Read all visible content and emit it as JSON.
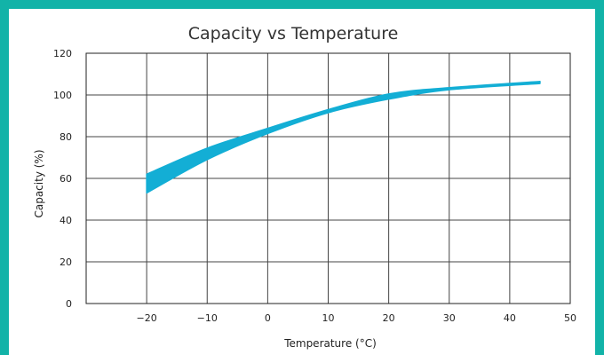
{
  "chart_data": {
    "type": "area",
    "title": "Capacity vs Temperature",
    "xlabel": "Temperature (°C)",
    "ylabel": "Capacity (%)",
    "xlim": [
      -30,
      50
    ],
    "ylim": [
      0,
      120
    ],
    "x_ticks": [
      "−20",
      "−10",
      "0",
      "10",
      "20",
      "30",
      "40",
      "50"
    ],
    "y_ticks": [
      "0",
      "20",
      "40",
      "60",
      "80",
      "100",
      "120"
    ],
    "grid": true,
    "band_color": "#13aed5",
    "series": [
      {
        "x": [
          -20,
          -10,
          0,
          10,
          20,
          30,
          45
        ],
        "upper": [
          62,
          74.5,
          84,
          93,
          100.5,
          103.5,
          106.5
        ],
        "lower": [
          53,
          69,
          81.5,
          91.5,
          98,
          102.5,
          105.5
        ]
      }
    ]
  }
}
